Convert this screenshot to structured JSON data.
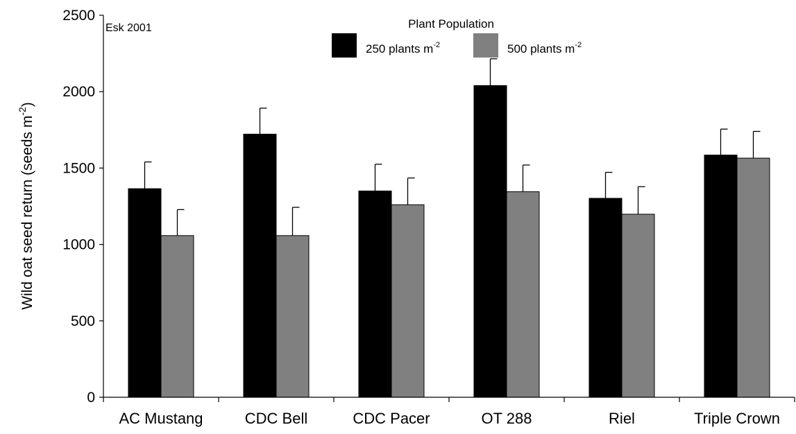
{
  "chart_data": {
    "type": "bar",
    "annotation": "Esk 2001",
    "legend": {
      "title": "Plant Population",
      "placement": "top-center"
    },
    "ylabel": {
      "main": "Wild oat seed return (seeds m",
      "sup": "-2",
      "tail": ")"
    },
    "ylim": [
      0,
      2500
    ],
    "yticks": [
      0,
      500,
      1000,
      1500,
      2000,
      2500
    ],
    "categories": [
      "AC Mustang",
      "CDC Bell",
      "CDC Pacer",
      "OT 288",
      "Riel",
      "Triple Crown"
    ],
    "series": [
      {
        "name": "250 plants m",
        "name_sup": "-2",
        "color": "#000000",
        "values": [
          1365,
          1722,
          1350,
          2040,
          1302,
          1585
        ],
        "errors": [
          175,
          170,
          175,
          175,
          170,
          170
        ]
      },
      {
        "name": "500 plants m",
        "name_sup": "-2",
        "color": "#808080",
        "values": [
          1058,
          1058,
          1260,
          1345,
          1198,
          1565
        ],
        "errors": [
          170,
          185,
          175,
          175,
          180,
          175
        ]
      }
    ],
    "grid": false
  }
}
